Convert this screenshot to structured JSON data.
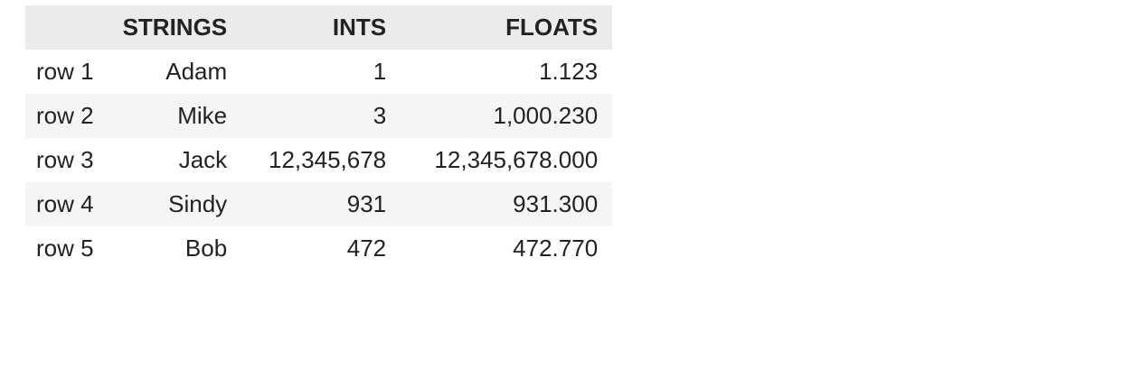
{
  "table": {
    "index_header": "",
    "columns": [
      "STRINGS",
      "INTS",
      "FLOATS"
    ],
    "rows": [
      {
        "index": "row 1",
        "cells": [
          "Adam",
          "1",
          "1.123"
        ]
      },
      {
        "index": "row 2",
        "cells": [
          "Mike",
          "3",
          "1,000.230"
        ]
      },
      {
        "index": "row 3",
        "cells": [
          "Jack",
          "12,345,678",
          "12,345,678.000"
        ]
      },
      {
        "index": "row 4",
        "cells": [
          "Sindy",
          "931",
          "931.300"
        ]
      },
      {
        "index": "row 5",
        "cells": [
          "Bob",
          "472",
          "472.770"
        ]
      }
    ]
  }
}
